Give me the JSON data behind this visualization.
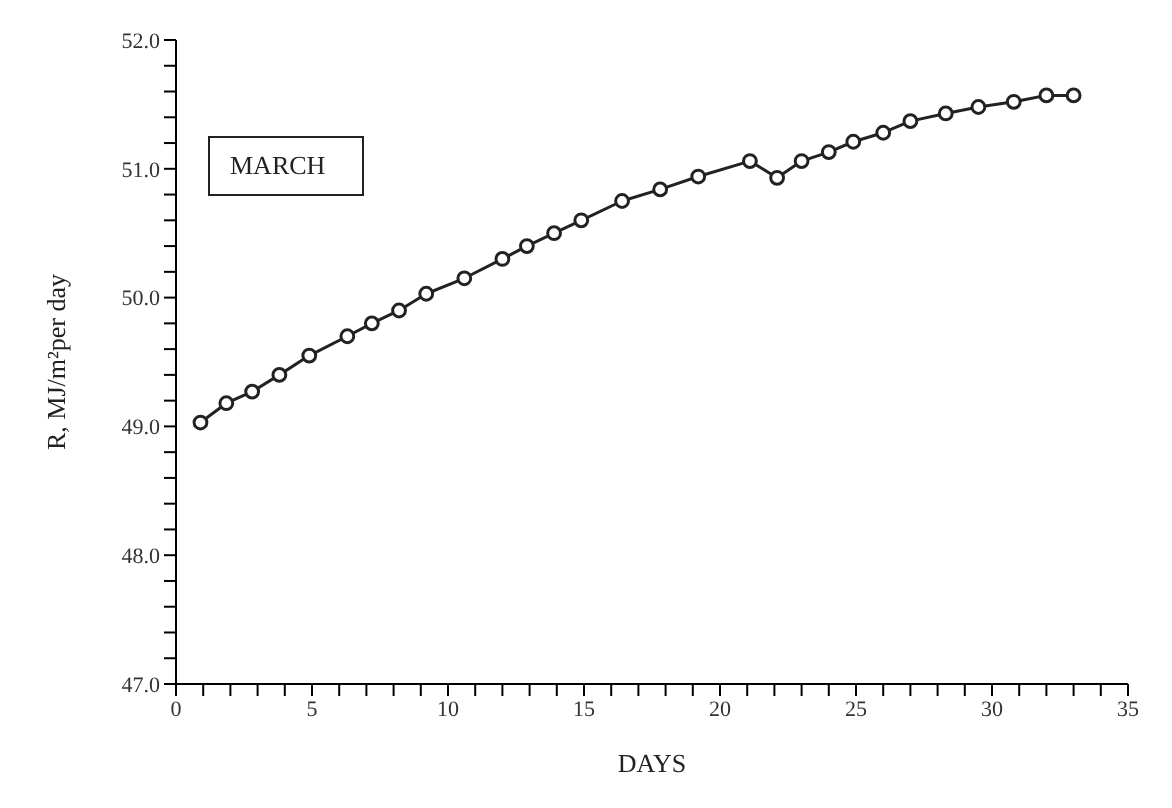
{
  "chart_data": {
    "type": "line",
    "xlabel": "DAYS",
    "ylabel": "R, MJ/m²per day",
    "annotations": [
      "MARCH"
    ],
    "marker": "circle",
    "line_style": "solid",
    "grid": false,
    "legend": false,
    "x": [
      0.9,
      1.85,
      2.8,
      3.8,
      4.9,
      6.3,
      7.2,
      8.2,
      9.2,
      10.6,
      12,
      12.9,
      13.9,
      14.9,
      16.4,
      17.8,
      19.2,
      21.1,
      22.1,
      23,
      24,
      24.9,
      26,
      27,
      28.3,
      29.5,
      30.8,
      32,
      33
    ],
    "series": [
      {
        "color": "#222222",
        "values": [
          49.03,
          49.18,
          49.27,
          49.4,
          49.55,
          49.7,
          49.8,
          49.9,
          50.03,
          50.15,
          50.3,
          50.4,
          50.5,
          50.6,
          50.75,
          50.84,
          50.94,
          51.06,
          50.93,
          51.06,
          51.13,
          51.21,
          51.28,
          51.37,
          51.43,
          51.48,
          51.52,
          51.57,
          51.57
        ]
      }
    ],
    "xlim": [
      0,
      35
    ],
    "ylim": [
      47,
      52
    ],
    "xticks": [
      {
        "value": 0,
        "label": "0"
      },
      {
        "value": 1,
        "label": null
      },
      {
        "value": 2,
        "label": null
      },
      {
        "value": 3,
        "label": null
      },
      {
        "value": 4,
        "label": null
      },
      {
        "value": 5,
        "label": "5"
      },
      {
        "value": 6,
        "label": null
      },
      {
        "value": 7,
        "label": null
      },
      {
        "value": 8,
        "label": null
      },
      {
        "value": 9,
        "label": null
      },
      {
        "value": 10,
        "label": "10"
      },
      {
        "value": 11,
        "label": null
      },
      {
        "value": 12,
        "label": null
      },
      {
        "value": 13,
        "label": null
      },
      {
        "value": 14,
        "label": null
      },
      {
        "value": 15,
        "label": "15"
      },
      {
        "value": 16,
        "label": null
      },
      {
        "value": 17,
        "label": null
      },
      {
        "value": 18,
        "label": null
      },
      {
        "value": 19,
        "label": null
      },
      {
        "value": 20,
        "label": "20"
      },
      {
        "value": 21,
        "label": null
      },
      {
        "value": 22,
        "label": null
      },
      {
        "value": 23,
        "label": null
      },
      {
        "value": 24,
        "label": null
      },
      {
        "value": 25,
        "label": "25"
      },
      {
        "value": 26,
        "label": null
      },
      {
        "value": 27,
        "label": null
      },
      {
        "value": 28,
        "label": null
      },
      {
        "value": 29,
        "label": null
      },
      {
        "value": 30,
        "label": "30"
      },
      {
        "value": 31,
        "label": null
      },
      {
        "value": 32,
        "label": null
      },
      {
        "value": 33,
        "label": null
      },
      {
        "value": 34,
        "label": null
      },
      {
        "value": 35,
        "label": "35"
      }
    ],
    "yticks": [
      {
        "value": 47,
        "label": "47.0"
      },
      {
        "value": 47.2,
        "label": null
      },
      {
        "value": 47.4,
        "label": null
      },
      {
        "value": 47.6,
        "label": null
      },
      {
        "value": 47.8,
        "label": null
      },
      {
        "value": 48,
        "label": "48.0"
      },
      {
        "value": 48.2,
        "label": null
      },
      {
        "value": 48.4,
        "label": null
      },
      {
        "value": 48.6,
        "label": null
      },
      {
        "value": 48.8,
        "label": null
      },
      {
        "value": 49,
        "label": "49.0"
      },
      {
        "value": 49.2,
        "label": null
      },
      {
        "value": 49.4,
        "label": null
      },
      {
        "value": 49.6,
        "label": null
      },
      {
        "value": 49.8,
        "label": null
      },
      {
        "value": 50,
        "label": "50.0"
      },
      {
        "value": 50.2,
        "label": null
      },
      {
        "value": 50.4,
        "label": null
      },
      {
        "value": 50.6,
        "label": null
      },
      {
        "value": 50.8,
        "label": null
      },
      {
        "value": 51,
        "label": "51.0"
      },
      {
        "value": 51.2,
        "label": null
      },
      {
        "value": 51.4,
        "label": null
      },
      {
        "value": 51.6,
        "label": null
      },
      {
        "value": 51.8,
        "label": null
      },
      {
        "value": 52,
        "label": "52.0"
      }
    ]
  }
}
